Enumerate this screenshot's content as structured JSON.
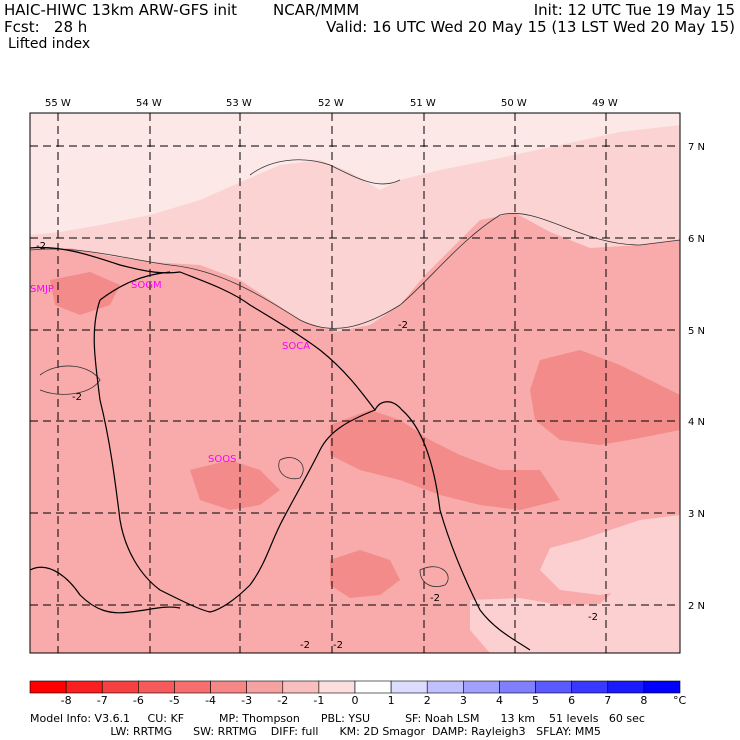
{
  "header": {
    "model": "HAIC-HIWC 13km ARW-GFS init",
    "org": "NCAR/MMM",
    "forecast": "Fcst:   28 h",
    "init": "Init: 12 UTC Tue 19 May 15",
    "valid": "Valid: 16 UTC Wed 20 May 15 (13 LST Wed 20 May 15)",
    "field": "Lifted index"
  },
  "map": {
    "lon_labels": [
      "55 W",
      "54 W",
      "53 W",
      "52 W",
      "51 W",
      "50 W",
      "49 W"
    ],
    "lat_labels": [
      "7 N",
      "6 N",
      "5 N",
      "4 N",
      "3 N",
      "2 N"
    ],
    "stations": [
      "SMJP",
      "SOGM",
      "SOCA",
      "SOOS"
    ],
    "contour_labels": [
      "-2",
      "-2",
      "-2",
      "-2",
      "-2",
      "-2",
      "-2"
    ],
    "colors": {
      "light": "#fde0e0",
      "base": "#f9aaaa",
      "mid": "#f79a9a",
      "dark": "#f27d7d"
    }
  },
  "colorbar": {
    "ticks": [
      "-8",
      "-7",
      "-6",
      "-5",
      "-4",
      "-3",
      "-2",
      "-1",
      "0",
      "1",
      "2",
      "3",
      "4",
      "5",
      "6",
      "7",
      "8"
    ],
    "unit": "°C",
    "colors": [
      "#ff0000",
      "#fa2020",
      "#f74040",
      "#f75a5a",
      "#f76e6e",
      "#f78787",
      "#f7a2a2",
      "#f9bfbf",
      "#fcdede",
      "#ffffff",
      "#dcdcff",
      "#c0c0ff",
      "#a0a0ff",
      "#8080ff",
      "#5a5aff",
      "#3838ff",
      "#1a1aff",
      "#0000ff"
    ]
  },
  "footer": {
    "line1": "Model Info: V3.6.1     CU: KF          MP: Thompson      PBL: YSU          SF: Noah LSM      13 km    51 levels   60 sec",
    "line2": "                       LW: RRTMG      SW: RRTMG    DIFF: full      KM: 2D Smagor  DAMP: Rayleigh3   SFLAY: MM5"
  }
}
